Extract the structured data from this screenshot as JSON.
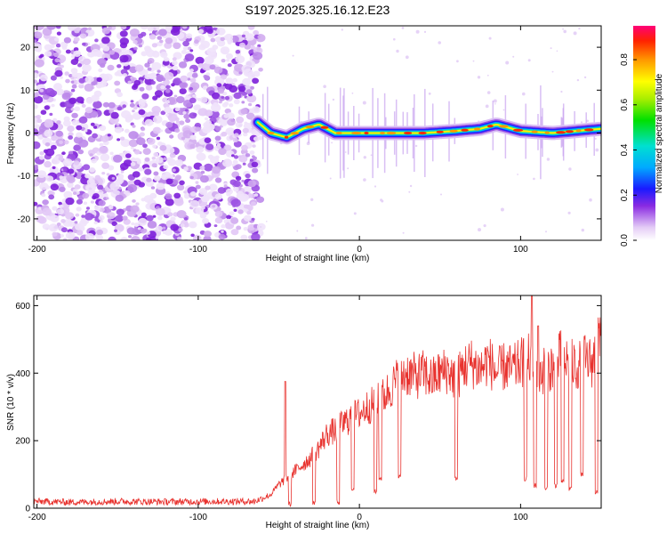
{
  "title": "S197.2025.325.16.12.E23",
  "chart_data": [
    {
      "type": "heatmap",
      "xlabel": "Height of straight line (km)",
      "ylabel": "Frequency (Hz)",
      "xlim": [
        -202,
        150
      ],
      "ylim": [
        -25,
        25
      ],
      "xticks": [
        -200,
        -100,
        0,
        100
      ],
      "yticks": [
        -20,
        -10,
        0,
        10,
        20
      ],
      "colorbar": {
        "label": "Normalized spectral amplitude",
        "range": [
          0.0,
          0.95
        ],
        "ticks": [
          0.0,
          0.2,
          0.4,
          0.6,
          0.8
        ],
        "tick_labels": [
          "0.0",
          "0.2",
          "0.4",
          "0.6",
          "0.8"
        ]
      },
      "noise_region_end_km": -63,
      "ridge": {
        "x": [
          -63,
          -55,
          -45,
          -35,
          -25,
          -15,
          0,
          20,
          40,
          60,
          75,
          80,
          85,
          100,
          120,
          150
        ],
        "y": [
          2.5,
          0,
          -1,
          1,
          2,
          0,
          0,
          0,
          0,
          0.5,
          1,
          1.5,
          2,
          0.5,
          0,
          1
        ]
      }
    },
    {
      "type": "line",
      "xlabel": "Height of straight line (km)",
      "ylabel": "SNR (10 * v/v)",
      "xlim": [
        -202,
        150
      ],
      "ylim": [
        0,
        630
      ],
      "xticks": [
        -200,
        -100,
        0,
        100
      ],
      "yticks": [
        0,
        200,
        400,
        600
      ],
      "series": [
        {
          "name": "SNR",
          "color": "#e8322e",
          "x": [
            -202,
            -180,
            -150,
            -120,
            -90,
            -65,
            -55,
            -50,
            -45,
            -40,
            -35,
            -30,
            -25,
            -20,
            -15,
            -10,
            -5,
            0,
            5,
            10,
            15,
            20,
            25,
            30,
            35,
            40,
            45,
            50,
            55,
            60,
            65,
            70,
            75,
            80,
            85,
            90,
            95,
            100,
            105,
            110,
            115,
            120,
            125,
            130,
            135,
            140,
            145,
            150
          ],
          "values": [
            20,
            18,
            20,
            19,
            20,
            20,
            40,
            70,
            90,
            110,
            130,
            150,
            180,
            220,
            230,
            250,
            270,
            280,
            300,
            310,
            330,
            360,
            390,
            400,
            390,
            400,
            380,
            400,
            410,
            380,
            420,
            430,
            410,
            440,
            400,
            420,
            410,
            430,
            440,
            400,
            410,
            420,
            450,
            430,
            420,
            440,
            430,
            560
          ],
          "dips": [
            {
              "x": -43,
              "y": 5
            },
            {
              "x": -28,
              "y": 10
            },
            {
              "x": -13,
              "y": 10
            },
            {
              "x": -4,
              "y": 50
            },
            {
              "x": 10,
              "y": 40
            },
            {
              "x": 13,
              "y": 80
            },
            {
              "x": 25,
              "y": 90
            },
            {
              "x": 60,
              "y": 80
            },
            {
              "x": 103,
              "y": 80
            },
            {
              "x": 109,
              "y": 60
            },
            {
              "x": 116,
              "y": 50
            },
            {
              "x": 122,
              "y": 60
            },
            {
              "x": 126,
              "y": 70
            },
            {
              "x": 131,
              "y": 50
            },
            {
              "x": 138,
              "y": 90
            },
            {
              "x": 147,
              "y": 40
            }
          ],
          "spikes": [
            {
              "x": -46,
              "y": 375
            },
            {
              "x": 107,
              "y": 630
            },
            {
              "x": 111,
              "y": 540
            }
          ]
        }
      ]
    }
  ]
}
